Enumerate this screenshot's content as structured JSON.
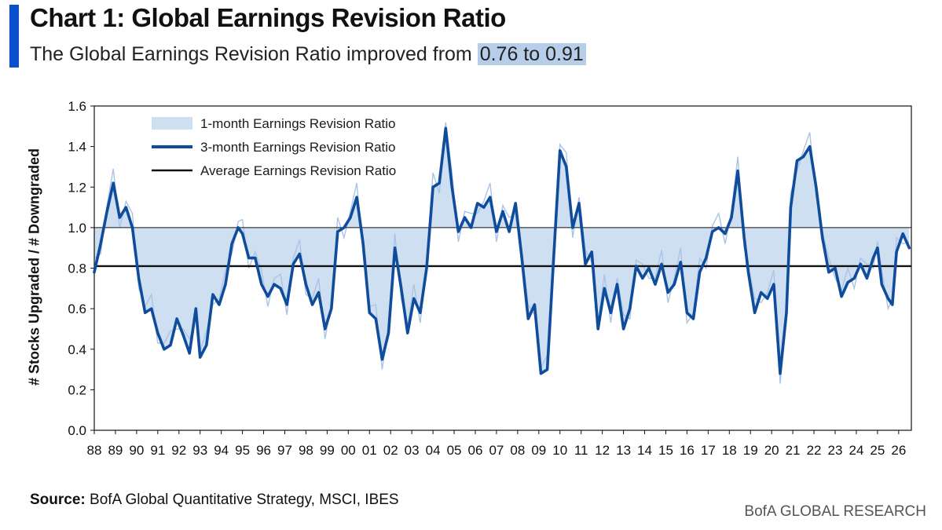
{
  "header": {
    "title": "Chart 1: Global Earnings Revision Ratio",
    "subtitle_prefix": "The Global Earnings Revision Ratio improved from",
    "subtitle_highlight": "0.76 to 0.91"
  },
  "footer": {
    "source_label": "Source:",
    "source_text": "BofA Global Quantitative Strategy, MSCI, IBES",
    "brand": "BofA GLOBAL RESEARCH"
  },
  "colors": {
    "accent": "#0b4fcf",
    "line": "#0f4c9c",
    "fill": "#cfdff2",
    "average": "#111111",
    "highlight": "#b6cee9"
  },
  "chart_data": {
    "type": "line",
    "title": "Chart 1: Global Earnings Revision Ratio",
    "ylabel": "# Stocks Upgraded / # Downgraded",
    "xlabel": "",
    "ylim": [
      0,
      1.6
    ],
    "yticks": [
      "0.0",
      "0.2",
      "0.4",
      "0.6",
      "0.8",
      "1.0",
      "1.2",
      "1.4",
      "1.6"
    ],
    "xticks": [
      "88",
      "89",
      "90",
      "91",
      "92",
      "93",
      "94",
      "95",
      "96",
      "97",
      "98",
      "99",
      "00",
      "01",
      "02",
      "03",
      "04",
      "05",
      "06",
      "07",
      "08",
      "09",
      "10",
      "11",
      "12",
      "13",
      "14",
      "15",
      "16",
      "17",
      "18",
      "19",
      "20",
      "21",
      "22",
      "23",
      "24",
      "25",
      "26"
    ],
    "reference_line": 1.0,
    "average": 0.81,
    "legend": {
      "placement": "top-left",
      "entries": [
        "1-month Earnings Revision Ratio",
        "3-month Earnings Revision Ratio",
        "Average Earnings Revision Ratio"
      ]
    },
    "series": [
      {
        "name": "3-month Earnings Revision Ratio",
        "points": [
          [
            1988.0,
            0.78
          ],
          [
            1988.3,
            0.92
          ],
          [
            1988.6,
            1.08
          ],
          [
            1988.9,
            1.22
          ],
          [
            1989.2,
            1.05
          ],
          [
            1989.5,
            1.1
          ],
          [
            1989.8,
            1.0
          ],
          [
            1990.1,
            0.75
          ],
          [
            1990.4,
            0.58
          ],
          [
            1990.7,
            0.6
          ],
          [
            1991.0,
            0.48
          ],
          [
            1991.3,
            0.4
          ],
          [
            1991.6,
            0.42
          ],
          [
            1991.9,
            0.55
          ],
          [
            1992.2,
            0.47
          ],
          [
            1992.5,
            0.38
          ],
          [
            1992.8,
            0.6
          ],
          [
            1993.0,
            0.36
          ],
          [
            1993.3,
            0.42
          ],
          [
            1993.6,
            0.67
          ],
          [
            1993.9,
            0.62
          ],
          [
            1994.2,
            0.72
          ],
          [
            1994.5,
            0.92
          ],
          [
            1994.8,
            1.0
          ],
          [
            1995.0,
            0.97
          ],
          [
            1995.3,
            0.85
          ],
          [
            1995.6,
            0.85
          ],
          [
            1995.9,
            0.72
          ],
          [
            1996.2,
            0.66
          ],
          [
            1996.5,
            0.72
          ],
          [
            1996.8,
            0.7
          ],
          [
            1997.1,
            0.62
          ],
          [
            1997.4,
            0.82
          ],
          [
            1997.7,
            0.87
          ],
          [
            1998.0,
            0.72
          ],
          [
            1998.3,
            0.62
          ],
          [
            1998.6,
            0.68
          ],
          [
            1998.9,
            0.5
          ],
          [
            1999.2,
            0.6
          ],
          [
            1999.5,
            0.98
          ],
          [
            1999.8,
            1.0
          ],
          [
            2000.1,
            1.05
          ],
          [
            2000.4,
            1.15
          ],
          [
            2000.7,
            0.92
          ],
          [
            2001.0,
            0.58
          ],
          [
            2001.3,
            0.55
          ],
          [
            2001.6,
            0.35
          ],
          [
            2001.9,
            0.48
          ],
          [
            2002.2,
            0.9
          ],
          [
            2002.5,
            0.7
          ],
          [
            2002.8,
            0.48
          ],
          [
            2003.1,
            0.65
          ],
          [
            2003.4,
            0.58
          ],
          [
            2003.7,
            0.8
          ],
          [
            2004.0,
            1.2
          ],
          [
            2004.3,
            1.22
          ],
          [
            2004.6,
            1.49
          ],
          [
            2004.9,
            1.2
          ],
          [
            2005.2,
            0.98
          ],
          [
            2005.5,
            1.05
          ],
          [
            2005.8,
            1.0
          ],
          [
            2006.1,
            1.12
          ],
          [
            2006.4,
            1.1
          ],
          [
            2006.7,
            1.15
          ],
          [
            2007.0,
            0.98
          ],
          [
            2007.3,
            1.08
          ],
          [
            2007.6,
            0.98
          ],
          [
            2007.9,
            1.12
          ],
          [
            2008.2,
            0.85
          ],
          [
            2008.5,
            0.55
          ],
          [
            2008.8,
            0.62
          ],
          [
            2009.1,
            0.28
          ],
          [
            2009.4,
            0.3
          ],
          [
            2009.7,
            0.85
          ],
          [
            2010.0,
            1.38
          ],
          [
            2010.3,
            1.3
          ],
          [
            2010.6,
            1.0
          ],
          [
            2010.9,
            1.12
          ],
          [
            2011.2,
            0.82
          ],
          [
            2011.5,
            0.88
          ],
          [
            2011.8,
            0.5
          ],
          [
            2012.1,
            0.7
          ],
          [
            2012.4,
            0.58
          ],
          [
            2012.7,
            0.72
          ],
          [
            2013.0,
            0.5
          ],
          [
            2013.3,
            0.6
          ],
          [
            2013.6,
            0.81
          ],
          [
            2013.9,
            0.75
          ],
          [
            2014.2,
            0.8
          ],
          [
            2014.5,
            0.72
          ],
          [
            2014.8,
            0.82
          ],
          [
            2015.1,
            0.68
          ],
          [
            2015.4,
            0.72
          ],
          [
            2015.7,
            0.83
          ],
          [
            2016.0,
            0.58
          ],
          [
            2016.3,
            0.55
          ],
          [
            2016.6,
            0.78
          ],
          [
            2016.9,
            0.85
          ],
          [
            2017.2,
            0.98
          ],
          [
            2017.5,
            1.0
          ],
          [
            2017.8,
            0.97
          ],
          [
            2018.1,
            1.05
          ],
          [
            2018.4,
            1.28
          ],
          [
            2018.7,
            0.95
          ],
          [
            2018.9,
            0.78
          ],
          [
            2019.2,
            0.58
          ],
          [
            2019.5,
            0.68
          ],
          [
            2019.8,
            0.65
          ],
          [
            2020.1,
            0.72
          ],
          [
            2020.4,
            0.28
          ],
          [
            2020.7,
            0.58
          ],
          [
            2020.9,
            1.1
          ],
          [
            2021.2,
            1.33
          ],
          [
            2021.5,
            1.35
          ],
          [
            2021.8,
            1.4
          ],
          [
            2022.1,
            1.2
          ],
          [
            2022.4,
            0.95
          ],
          [
            2022.7,
            0.78
          ],
          [
            2023.0,
            0.8
          ],
          [
            2023.3,
            0.66
          ],
          [
            2023.6,
            0.73
          ],
          [
            2023.9,
            0.75
          ],
          [
            2024.2,
            0.82
          ],
          [
            2024.5,
            0.75
          ],
          [
            2024.8,
            0.85
          ],
          [
            2025.0,
            0.9
          ],
          [
            2025.2,
            0.72
          ],
          [
            2025.5,
            0.65
          ],
          [
            2025.7,
            0.62
          ],
          [
            2025.9,
            0.88
          ],
          [
            2026.2,
            0.97
          ],
          [
            2026.5,
            0.9
          ]
        ]
      }
    ]
  }
}
